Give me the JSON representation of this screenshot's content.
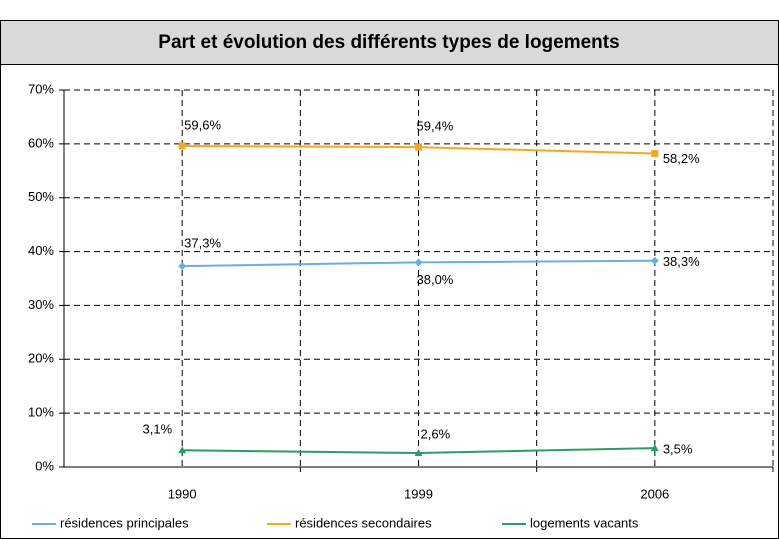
{
  "chart_data": {
    "type": "line",
    "title": "Part et évolution des différents types de logements",
    "categories": [
      "1990",
      "1999",
      "2006"
    ],
    "series": [
      {
        "name": "résidences principales",
        "color": "#6aaee0",
        "values": [
          37.3,
          38.0,
          38.3
        ],
        "value_labels": [
          "37,3%",
          "38,0%",
          "38,3%"
        ]
      },
      {
        "name": "résidences secondaires",
        "color": "#f5a623",
        "values": [
          59.6,
          59.4,
          58.2
        ],
        "value_labels": [
          "59,6%",
          "59,4%",
          "58,2%"
        ]
      },
      {
        "name": "logements vacants",
        "color": "#2e9c6a",
        "values": [
          3.1,
          2.6,
          3.5
        ],
        "value_labels": [
          "3,1%",
          "2,6%",
          "3,5%"
        ]
      }
    ],
    "ylim": [
      0,
      70
    ],
    "yticks": [
      {
        "value": 0,
        "label": "0%"
      },
      {
        "value": 10,
        "label": "10%"
      },
      {
        "value": 20,
        "label": "20%"
      },
      {
        "value": 30,
        "label": "30%"
      },
      {
        "value": 40,
        "label": "40%"
      },
      {
        "value": 50,
        "label": "50%"
      },
      {
        "value": 60,
        "label": "60%"
      },
      {
        "value": 70,
        "label": "70%"
      }
    ],
    "grid": true
  }
}
